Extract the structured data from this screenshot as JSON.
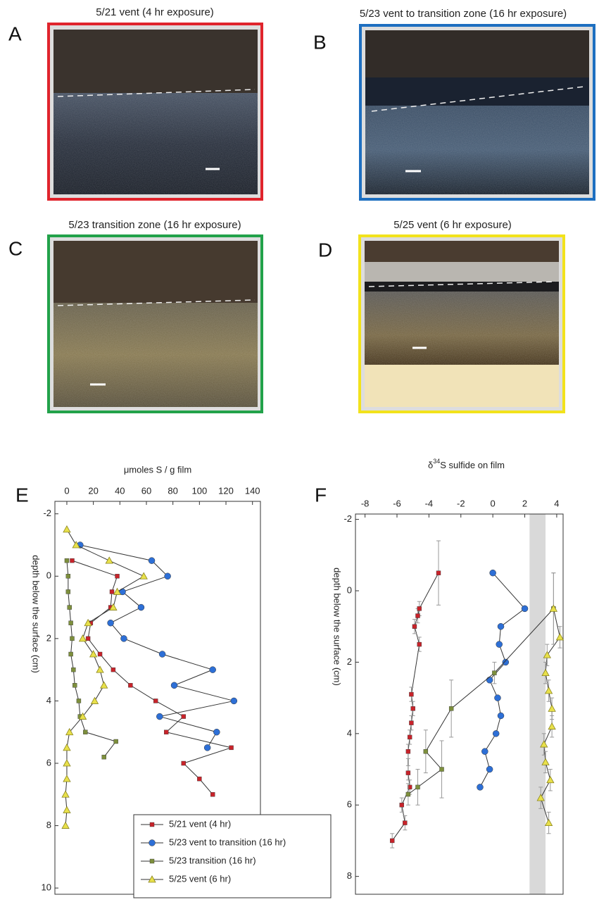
{
  "panels": [
    {
      "label": "A",
      "title": "5/21 vent (4 hr exposure)"
    },
    {
      "label": "B",
      "title": "5/23 vent to transition zone (16 hr exposure)"
    },
    {
      "label": "C",
      "title": "5/23 transition zone (16 hr exposure)"
    },
    {
      "label": "D",
      "title": "5/25 vent (6 hr exposure)"
    }
  ],
  "chart_data": [
    {
      "type": "line",
      "label": "E",
      "xlabel": "μmoles S / g film",
      "ylabel": "depth below the surface (cm)",
      "xlim": [
        -9,
        146
      ],
      "xticks": [
        0,
        20,
        40,
        60,
        80,
        100,
        120,
        140
      ],
      "ylim": [
        -2.4,
        10.2
      ],
      "yticks": [
        -2,
        0,
        2,
        4,
        6,
        8,
        10
      ],
      "legend": "lower right",
      "series": [
        {
          "name": "5/21 vent (4 hr)",
          "color": "#c8232a",
          "marker": "square",
          "x": [
            4,
            38,
            34,
            33,
            18,
            16,
            25,
            35,
            48,
            67,
            88,
            75,
            124,
            88,
            100,
            110
          ],
          "y": [
            -0.5,
            0,
            0.5,
            1,
            1.5,
            2,
            2.5,
            3,
            3.5,
            4,
            4.5,
            5,
            5.5,
            6,
            6.5,
            7
          ]
        },
        {
          "name": "5/23 vent to transition (16 hr)",
          "color": "#2d6fd6",
          "marker": "circle",
          "x": [
            10,
            64,
            76,
            42,
            56,
            33,
            43,
            72,
            110,
            81,
            126,
            70,
            113,
            106
          ],
          "y": [
            -1,
            -0.5,
            0,
            0.5,
            1,
            1.5,
            2,
            2.5,
            3,
            3.5,
            4,
            4.5,
            5,
            5.5
          ]
        },
        {
          "name": "5/23 transition (16 hr)",
          "color": "#7d8f3c",
          "marker": "square",
          "x": [
            0,
            1,
            1,
            2,
            3,
            4,
            3,
            5,
            6,
            9,
            10,
            14,
            37,
            28
          ],
          "y": [
            -0.5,
            0,
            0.5,
            1,
            1.5,
            2,
            2.5,
            3,
            3.5,
            4,
            4.5,
            5,
            5.3,
            5.8
          ]
        },
        {
          "name": "5/25 vent (6 hr)",
          "color": "#e8e04a",
          "marker": "triangle",
          "x": [
            0,
            7,
            32,
            58,
            38,
            35,
            16,
            12,
            20,
            25,
            28,
            21,
            12,
            2,
            0,
            0,
            0,
            -1,
            0,
            -1
          ],
          "y": [
            -1.5,
            -1,
            -0.5,
            0,
            0.5,
            1,
            1.5,
            2,
            2.5,
            3,
            3.5,
            4,
            4.5,
            5,
            5.5,
            6,
            6.5,
            7,
            7.5,
            8
          ]
        }
      ]
    },
    {
      "type": "line",
      "label": "F",
      "xlabel_prefix": "δ",
      "xlabel_sup": "34",
      "xlabel_suffix": "S sulfide on film",
      "ylabel": "depth below the surface (cm)",
      "xlim": [
        -8.6,
        4.4
      ],
      "xticks": [
        -8,
        -6,
        -4,
        -2,
        0,
        2,
        4
      ],
      "ylim": [
        -2.15,
        8.5
      ],
      "yticks": [
        -2,
        0,
        2,
        4,
        6,
        8
      ],
      "shaded_band": [
        2.3,
        3.3
      ],
      "series": [
        {
          "color": "#c8232a",
          "marker": "square",
          "x": [
            -3.4,
            -4.6,
            -4.7,
            -4.9,
            -4.6,
            -5.1,
            -5.0,
            -5.1,
            -5.2,
            -5.3,
            -5.3,
            -5.2,
            -5.7,
            -5.5,
            -6.3
          ],
          "y": [
            -0.5,
            0.5,
            0.7,
            1,
            1.5,
            2.9,
            3.3,
            3.7,
            4.1,
            4.5,
            5.1,
            5.5,
            6,
            6.5,
            7
          ],
          "errors": [
            0.9,
            0.2,
            0.2,
            0.2,
            0.2,
            0.2,
            0.2,
            0.2,
            0.2,
            0.2,
            0.2,
            0.2,
            0.2,
            0.2,
            0.2
          ]
        },
        {
          "color": "#2d6fd6",
          "marker": "circle",
          "x": [
            0,
            2,
            0.5,
            0.4,
            0.8,
            -0.2,
            0.3,
            0.5,
            0.2,
            -0.5,
            -0.2,
            -0.8
          ],
          "y": [
            -0.5,
            0.5,
            1,
            1.5,
            2,
            2.5,
            3,
            3.5,
            4,
            4.5,
            5,
            5.5
          ]
        },
        {
          "color": "#7d8f3c",
          "marker": "square",
          "x": [
            3.8,
            0.1,
            -2.6,
            -4.2,
            -3.2,
            -4.7,
            -5.3
          ],
          "y": [
            0.5,
            2.3,
            3.3,
            4.5,
            5,
            5.5,
            5.7
          ],
          "errors": [
            1,
            0.3,
            0.8,
            0.6,
            0.8,
            0.5,
            0.3
          ]
        },
        {
          "color": "#e8e04a",
          "marker": "triangle",
          "x": [
            3.8,
            4.2,
            3.4,
            3.3,
            3.5,
            3.7,
            3.7,
            3.2,
            3.3,
            3.6,
            3.0,
            3.5
          ],
          "y": [
            0.5,
            1.3,
            1.8,
            2.3,
            2.8,
            3.3,
            3.8,
            4.3,
            4.8,
            5.3,
            5.8,
            6.5
          ],
          "errors": [
            1,
            0.3,
            0.3,
            0.3,
            0.3,
            0.3,
            0.3,
            0.3,
            0.3,
            0.3,
            0.3,
            0.3
          ]
        }
      ]
    }
  ]
}
